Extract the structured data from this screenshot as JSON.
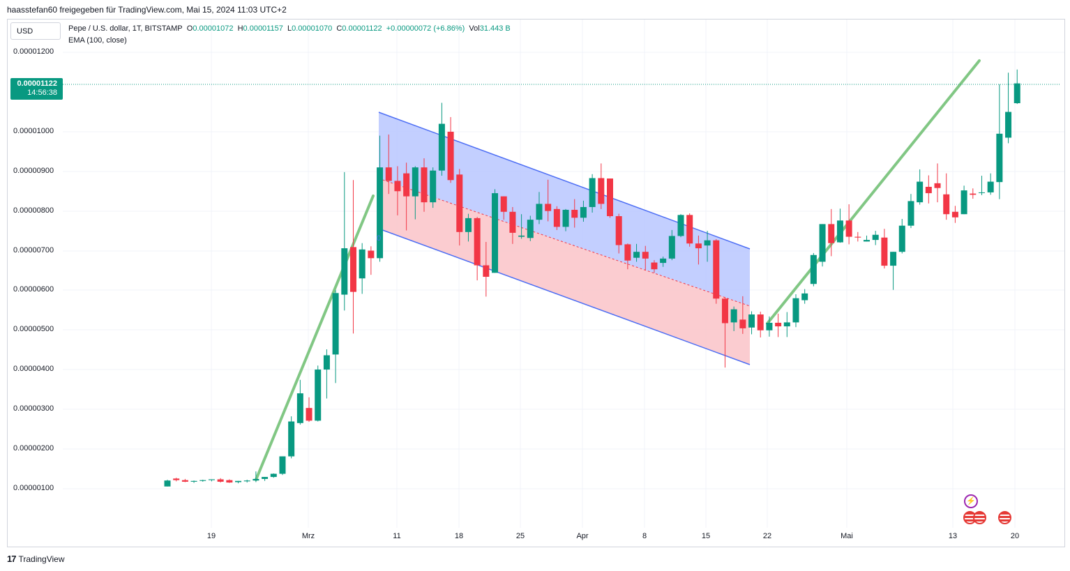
{
  "header": {
    "shared_text": "haasstefan60 freigegeben für TradingView.com, Mai 15, 2024 11:03 UTC+2"
  },
  "currency_button": "USD",
  "legend": {
    "symbol": "Pepe / U.S. dollar, 1T, BITSTAMP",
    "o_label": "O",
    "o_value": "0.00001072",
    "h_label": "H",
    "h_value": "0.00001157",
    "l_label": "L",
    "l_value": "0.00001070",
    "c_label": "C",
    "c_value": "0.00001122",
    "change": "+0.00000072 (+6.86%)",
    "vol_label": "Vol",
    "vol_value": "31.443 B",
    "indicator": "EMA (100, close)"
  },
  "price_tag": {
    "price": "0.00001122",
    "countdown": "14:56:38"
  },
  "channel_label": "0",
  "footer": {
    "logo_text": "TradingView",
    "logo_mark": "17"
  },
  "colors": {
    "up": "#089981",
    "down": "#f23645",
    "channel_upper_fill": "#bccaff",
    "channel_lower_fill": "#fbc7cb",
    "channel_line": "#4d6ef4",
    "trend_line": "#81c784",
    "grid": "#f0f3fa"
  },
  "icons": [
    "lightning-event-icon",
    "us-flag-event-icon",
    "us-flag-event-icon",
    "us-flag-event-icon"
  ],
  "chart_data": {
    "type": "candlestick",
    "title": "Pepe / U.S. dollar, 1T, BITSTAMP",
    "y_ticks": [
      "0.00001200",
      "0.00001000",
      "0.00000900",
      "0.00000800",
      "0.00000700",
      "0.00000600",
      "0.00000500",
      "0.00000400",
      "0.00000300",
      "0.00000200",
      "0.00000100"
    ],
    "x_ticks": [
      "19",
      "Mrz",
      "11",
      "18",
      "25",
      "Apr",
      "8",
      "15",
      "22",
      "Mai",
      "13",
      "20"
    ],
    "ylim": [
      3e-07,
      1.28e-05
    ],
    "grid": true,
    "candles": [
      {
        "o": 1.05e-06,
        "h": 1.22e-06,
        "l": 1.05e-06,
        "c": 1.2e-06
      },
      {
        "o": 1.25e-06,
        "h": 1.27e-06,
        "l": 1.18e-06,
        "c": 1.21e-06
      },
      {
        "o": 1.21e-06,
        "h": 1.24e-06,
        "l": 1.16e-06,
        "c": 1.17e-06
      },
      {
        "o": 1.17e-06,
        "h": 1.2e-06,
        "l": 1.14e-06,
        "c": 1.19e-06
      },
      {
        "o": 1.19e-06,
        "h": 1.22e-06,
        "l": 1.17e-06,
        "c": 1.21e-06
      },
      {
        "o": 1.21e-06,
        "h": 1.23e-06,
        "l": 1.18e-06,
        "c": 1.23e-06
      },
      {
        "o": 1.23e-06,
        "h": 1.26e-06,
        "l": 1.15e-06,
        "c": 1.17e-06
      },
      {
        "o": 1.21e-06,
        "h": 1.23e-06,
        "l": 1.14e-06,
        "c": 1.15e-06
      },
      {
        "o": 1.16e-06,
        "h": 1.19e-06,
        "l": 1.13e-06,
        "c": 1.19e-06
      },
      {
        "o": 1.18e-06,
        "h": 1.22e-06,
        "l": 1.15e-06,
        "c": 1.2e-06
      },
      {
        "o": 1.2e-06,
        "h": 1.43e-06,
        "l": 1.16e-06,
        "c": 1.24e-06
      },
      {
        "o": 1.24e-06,
        "h": 1.27e-06,
        "l": 1.19e-06,
        "c": 1.29e-06
      },
      {
        "o": 1.29e-06,
        "h": 1.38e-06,
        "l": 1.27e-06,
        "c": 1.37e-06
      },
      {
        "o": 1.37e-06,
        "h": 1.78e-06,
        "l": 1.34e-06,
        "c": 1.81e-06
      },
      {
        "o": 1.81e-06,
        "h": 2.82e-06,
        "l": 1.76e-06,
        "c": 2.69e-06
      },
      {
        "o": 2.65e-06,
        "h": 3.74e-06,
        "l": 2.61e-06,
        "c": 3.4e-06
      },
      {
        "o": 3.03e-06,
        "h": 3.3e-06,
        "l": 2.68e-06,
        "c": 2.71e-06
      },
      {
        "o": 2.71e-06,
        "h": 4.1e-06,
        "l": 2.69e-06,
        "c": 4e-06
      },
      {
        "o": 4e-06,
        "h": 4.51e-06,
        "l": 3.27e-06,
        "c": 4.36e-06
      },
      {
        "o": 4.38e-06,
        "h": 6e-06,
        "l": 3.66e-06,
        "c": 5.93e-06
      },
      {
        "o": 5.89e-06,
        "h": 8.98e-06,
        "l": 5.49e-06,
        "c": 7.06e-06
      },
      {
        "o": 7.09e-06,
        "h": 8.78e-06,
        "l": 4.91e-06,
        "c": 5.96e-06
      },
      {
        "o": 6.3e-06,
        "h": 7.19e-06,
        "l": 5.91e-06,
        "c": 7.03e-06
      },
      {
        "o": 7e-06,
        "h": 7.11e-06,
        "l": 6.39e-06,
        "c": 6.81e-06
      },
      {
        "o": 6.81e-06,
        "h": 9.9e-06,
        "l": 6.72e-06,
        "c": 9.1e-06
      },
      {
        "o": 9.1e-06,
        "h": 9.93e-06,
        "l": 8.43e-06,
        "c": 8.76e-06
      },
      {
        "o": 8.76e-06,
        "h": 9.13e-06,
        "l": 7.89e-06,
        "c": 8.5e-06
      },
      {
        "o": 8.95e-06,
        "h": 9.22e-06,
        "l": 7.51e-06,
        "c": 8.37e-06
      },
      {
        "o": 8.37e-06,
        "h": 9.13e-06,
        "l": 7.79e-06,
        "c": 9.1e-06
      },
      {
        "o": 9.1e-06,
        "h": 9.33e-06,
        "l": 7.98e-06,
        "c": 8.22e-06
      },
      {
        "o": 8.22e-06,
        "h": 9.1e-06,
        "l": 8.08e-06,
        "c": 9.02e-06
      },
      {
        "o": 9.02e-06,
        "h": 1.073e-05,
        "l": 8.89e-06,
        "c": 1.02e-05
      },
      {
        "o": 1e-05,
        "h": 1.037e-05,
        "l": 8.71e-06,
        "c": 8.78e-06
      },
      {
        "o": 8.92e-06,
        "h": 9.06e-06,
        "l": 7.13e-06,
        "c": 7.47e-06
      },
      {
        "o": 7.47e-06,
        "h": 7.93e-06,
        "l": 7.23e-06,
        "c": 7.82e-06
      },
      {
        "o": 7.82e-06,
        "h": 7.85e-06,
        "l": 6.25e-06,
        "c": 6.63e-06
      },
      {
        "o": 6.63e-06,
        "h": 7.22e-06,
        "l": 5.84e-06,
        "c": 6.34e-06
      },
      {
        "o": 6.44e-06,
        "h": 8.55e-06,
        "l": 6.49e-06,
        "c": 8.45e-06
      },
      {
        "o": 8.37e-06,
        "h": 8.33e-06,
        "l": 7.78e-06,
        "c": 7.98e-06
      },
      {
        "o": 7.98e-06,
        "h": 8.1e-06,
        "l": 7.17e-06,
        "c": 7.45e-06
      },
      {
        "o": 7.35e-06,
        "h": 7.92e-06,
        "l": 7.3e-06,
        "c": 7.38e-06
      },
      {
        "o": 7.32e-06,
        "h": 7.88e-06,
        "l": 7.24e-06,
        "c": 7.78e-06
      },
      {
        "o": 7.78e-06,
        "h": 8.48e-06,
        "l": 7.67e-06,
        "c": 8.18e-06
      },
      {
        "o": 8.18e-06,
        "h": 8.79e-06,
        "l": 7.74e-06,
        "c": 8e-06
      },
      {
        "o": 8.05e-06,
        "h": 8.12e-06,
        "l": 7.52e-06,
        "c": 7.6e-06
      },
      {
        "o": 7.6e-06,
        "h": 8.05e-06,
        "l": 7.49e-06,
        "c": 8.03e-06
      },
      {
        "o": 8.03e-06,
        "h": 8.3e-06,
        "l": 7.58e-06,
        "c": 7.83e-06
      },
      {
        "o": 7.83e-06,
        "h": 8.26e-06,
        "l": 7.73e-06,
        "c": 8.1e-06
      },
      {
        "o": 8.1e-06,
        "h": 8.93e-06,
        "l": 7.96e-06,
        "c": 8.83e-06
      },
      {
        "o": 8.83e-06,
        "h": 9.2e-06,
        "l": 8.05e-06,
        "c": 8.18e-06
      },
      {
        "o": 8.82e-06,
        "h": 8.8e-06,
        "l": 7.83e-06,
        "c": 7.87e-06
      },
      {
        "o": 7.87e-06,
        "h": 7.93e-06,
        "l": 6.93e-06,
        "c": 7.14e-06
      },
      {
        "o": 7.16e-06,
        "h": 7.18e-06,
        "l": 6.53e-06,
        "c": 6.75e-06
      },
      {
        "o": 6.82e-06,
        "h": 7.17e-06,
        "l": 6.72e-06,
        "c": 6.97e-06
      },
      {
        "o": 6.97e-06,
        "h": 7.12e-06,
        "l": 6.51e-06,
        "c": 6.8e-06
      },
      {
        "o": 6.7e-06,
        "h": 6.76e-06,
        "l": 6.44e-06,
        "c": 6.53e-06
      },
      {
        "o": 6.69e-06,
        "h": 6.85e-06,
        "l": 6.59e-06,
        "c": 6.8e-06
      },
      {
        "o": 6.8e-06,
        "h": 7.52e-06,
        "l": 6.76e-06,
        "c": 7.37e-06
      },
      {
        "o": 7.37e-06,
        "h": 7.92e-06,
        "l": 7.34e-06,
        "c": 7.9e-06
      },
      {
        "o": 7.9e-06,
        "h": 7.94e-06,
        "l": 7.1e-06,
        "c": 7.18e-06
      },
      {
        "o": 7.18e-06,
        "h": 7.38e-06,
        "l": 6.65e-06,
        "c": 7.06e-06
      },
      {
        "o": 7.13e-06,
        "h": 7.5e-06,
        "l": 6.72e-06,
        "c": 7.26e-06
      },
      {
        "o": 7.26e-06,
        "h": 7.29e-06,
        "l": 5.66e-06,
        "c": 5.79e-06
      },
      {
        "o": 5.79e-06,
        "h": 5.83e-06,
        "l": 4.05e-06,
        "c": 5.17e-06
      },
      {
        "o": 5.19e-06,
        "h": 5.59e-06,
        "l": 4.97e-06,
        "c": 5.52e-06
      },
      {
        "o": 5.26e-06,
        "h": 5.85e-06,
        "l": 4.9e-06,
        "c": 5.04e-06
      },
      {
        "o": 5.06e-06,
        "h": 5.47e-06,
        "l": 4.89e-06,
        "c": 5.39e-06
      },
      {
        "o": 5.39e-06,
        "h": 5.46e-06,
        "l": 4.81e-06,
        "c": 4.99e-06
      },
      {
        "o": 4.99e-06,
        "h": 5.34e-06,
        "l": 4.83e-06,
        "c": 5.18e-06
      },
      {
        "o": 5.18e-06,
        "h": 5.41e-06,
        "l": 4.82e-06,
        "c": 5.09e-06
      },
      {
        "o": 5.09e-06,
        "h": 5.45e-06,
        "l": 4.82e-06,
        "c": 5.19e-06
      },
      {
        "o": 5.19e-06,
        "h": 5.9e-06,
        "l": 5.07e-06,
        "c": 5.8e-06
      },
      {
        "o": 5.75e-06,
        "h": 6.03e-06,
        "l": 5.66e-06,
        "c": 5.92e-06
      },
      {
        "o": 6.16e-06,
        "h": 6.94e-06,
        "l": 6.1e-06,
        "c": 6.89e-06
      },
      {
        "o": 6.72e-06,
        "h": 7.63e-06,
        "l": 6.6e-06,
        "c": 7.67e-06
      },
      {
        "o": 7.67e-06,
        "h": 8.05e-06,
        "l": 6.86e-06,
        "c": 7.19e-06
      },
      {
        "o": 7.21e-06,
        "h": 8.06e-06,
        "l": 7.2e-06,
        "c": 7.76e-06
      },
      {
        "o": 7.76e-06,
        "h": 8.17e-06,
        "l": 7.16e-06,
        "c": 7.35e-06
      },
      {
        "o": 7.35e-06,
        "h": 7.47e-06,
        "l": 7.23e-06,
        "c": 7.33e-06
      },
      {
        "o": 7.23e-06,
        "h": 7.38e-06,
        "l": 7.23e-06,
        "c": 7.27e-06
      },
      {
        "o": 7.27e-06,
        "h": 7.5e-06,
        "l": 7.14e-06,
        "c": 7.4e-06
      },
      {
        "o": 7.33e-06,
        "h": 7.55e-06,
        "l": 6.55e-06,
        "c": 6.62e-06
      },
      {
        "o": 6.62e-06,
        "h": 6.94e-06,
        "l": 6.01e-06,
        "c": 6.97e-06
      },
      {
        "o": 6.97e-06,
        "h": 7.8e-06,
        "l": 6.93e-06,
        "c": 7.63e-06
      },
      {
        "o": 7.63e-06,
        "h": 8.43e-06,
        "l": 7.57e-06,
        "c": 8.25e-06
      },
      {
        "o": 8.22e-06,
        "h": 9.05e-06,
        "l": 8.16e-06,
        "c": 8.74e-06
      },
      {
        "o": 8.61e-06,
        "h": 8.9e-06,
        "l": 8.19e-06,
        "c": 8.45e-06
      },
      {
        "o": 8.7e-06,
        "h": 9.2e-06,
        "l": 8.22e-06,
        "c": 8.58e-06
      },
      {
        "o": 8.42e-06,
        "h": 8.95e-06,
        "l": 7.78e-06,
        "c": 7.92e-06
      },
      {
        "o": 7.98e-06,
        "h": 8.13e-06,
        "l": 7.7e-06,
        "c": 7.84e-06
      },
      {
        "o": 7.92e-06,
        "h": 8.64e-06,
        "l": 7.96e-06,
        "c": 8.52e-06
      },
      {
        "o": 8.44e-06,
        "h": 8.57e-06,
        "l": 8.31e-06,
        "c": 8.41e-06
      },
      {
        "o": 8.46e-06,
        "h": 8.89e-06,
        "l": 8.4e-06,
        "c": 8.47e-06
      },
      {
        "o": 8.47e-06,
        "h": 8.95e-06,
        "l": 8.41e-06,
        "c": 8.74e-06
      },
      {
        "o": 8.73e-06,
        "h": 1.12e-05,
        "l": 8.3e-06,
        "c": 9.95e-06
      },
      {
        "o": 9.85e-06,
        "h": 1.149e-05,
        "l": 9.71e-06,
        "c": 1.05e-05
      },
      {
        "o": 1.072e-05,
        "h": 1.157e-05,
        "l": 1.07e-05,
        "c": 1.122e-05
      }
    ]
  }
}
